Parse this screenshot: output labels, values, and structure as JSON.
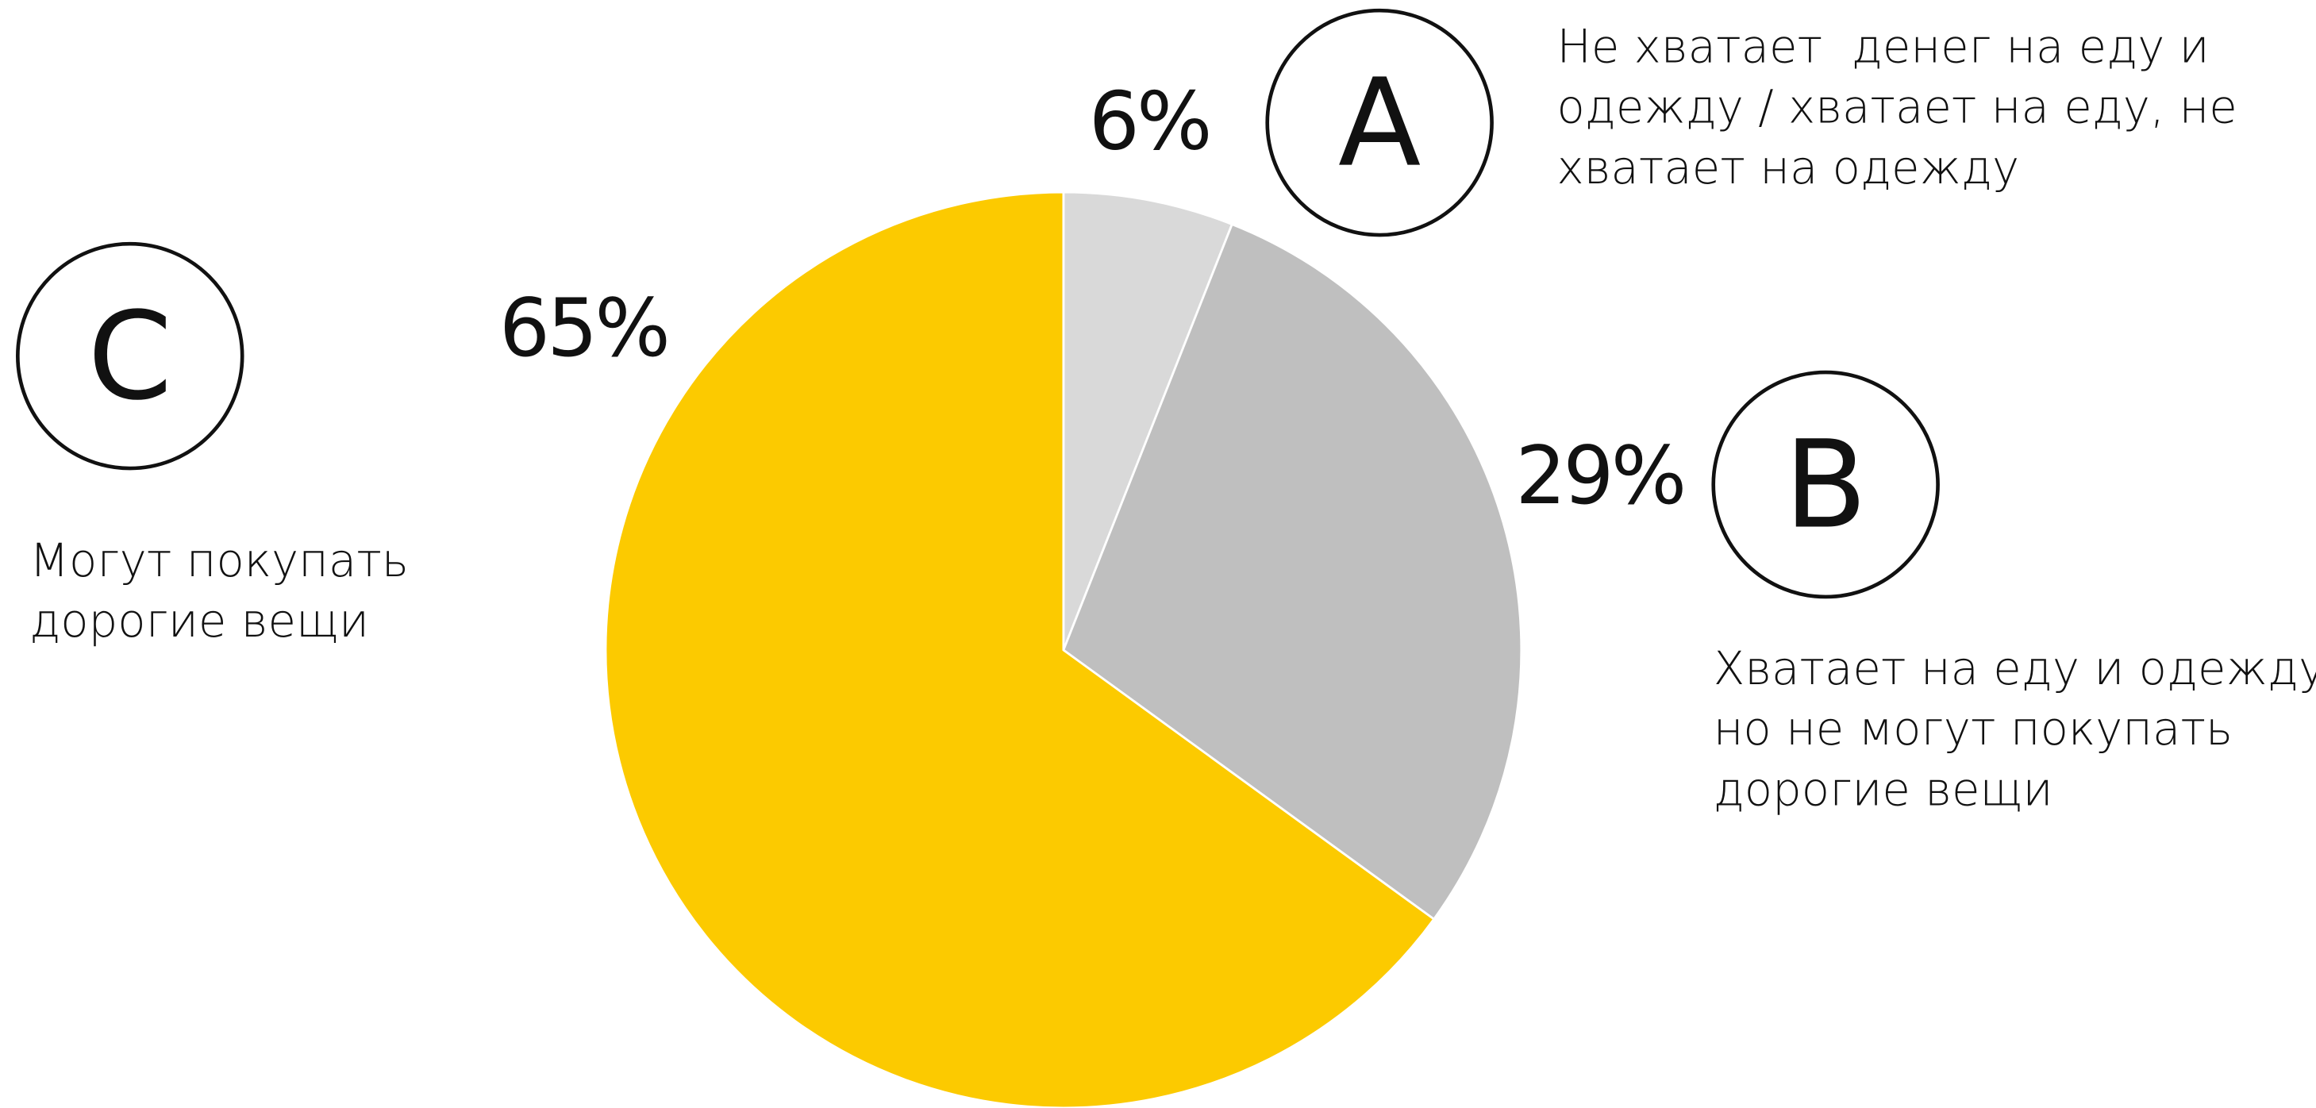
{
  "chart_data": {
    "type": "pie",
    "categories": [
      "A",
      "B",
      "C"
    ],
    "values": [
      6,
      29,
      65
    ],
    "value_labels": [
      "6%",
      "29%",
      "65%"
    ],
    "colors": [
      "#d9d9d9",
      "#bfbfbf",
      "#fcca00"
    ],
    "descriptions": [
      [
        "Не хватает  денег на еду и",
        "одежду / хватает на еду, не",
        "хватает на одежду"
      ],
      [
        "Хватает на еду и одежду,",
        "но не могут покупать",
        "дорогие вещи"
      ],
      [
        "Могут покупать",
        "дорогие вещи"
      ]
    ]
  }
}
